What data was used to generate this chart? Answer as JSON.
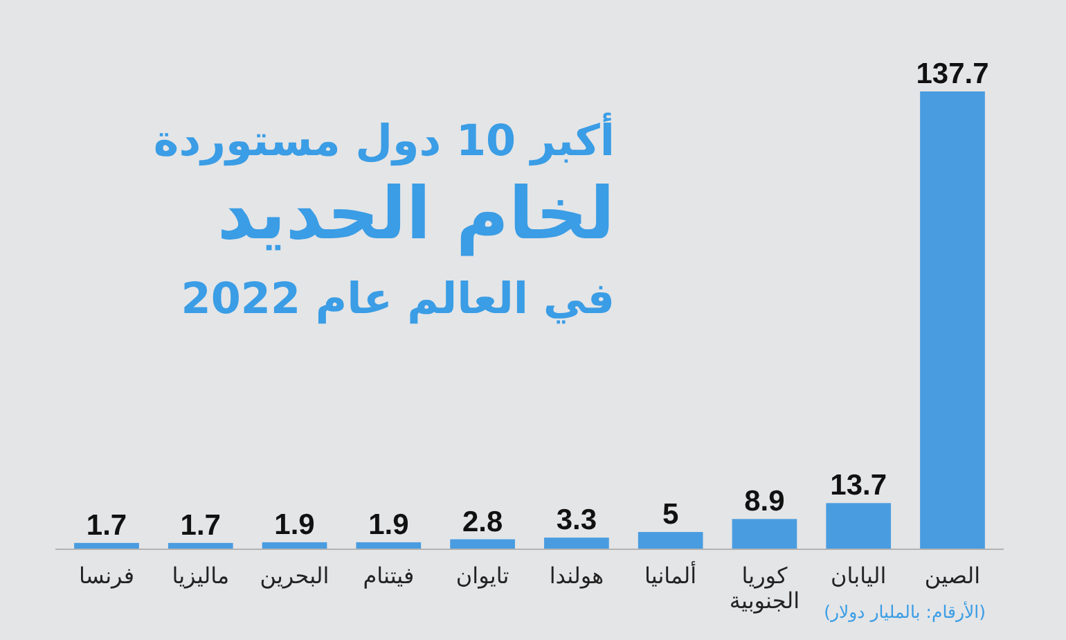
{
  "chart_data": {
    "type": "bar",
    "title": "أكبر 10 دول مستوردة\nلخام الحديد\nفي العالم عام 2022",
    "categories": [
      "فرنسا",
      "ماليزيا",
      "البحرين",
      "فيتنام",
      "تايوان",
      "هولندا",
      "ألمانيا",
      "كوريا الجنوبية",
      "اليابان",
      "الصين"
    ],
    "values": [
      1.7,
      1.7,
      1.9,
      1.9,
      2.8,
      3.3,
      5,
      8.9,
      13.7,
      137.7
    ],
    "color": "#4a9ce0",
    "data_labels": true,
    "annotations": [
      "(الأرقام: بالمليار دولار)"
    ]
  }
}
